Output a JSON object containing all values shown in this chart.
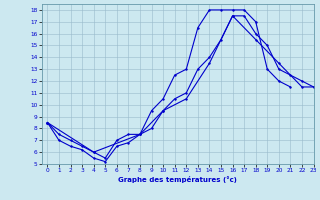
{
  "xlabel": "Graphe des températures (°c)",
  "xlim": [
    -0.5,
    23
  ],
  "ylim": [
    5,
    18.5
  ],
  "yticks": [
    5,
    6,
    7,
    8,
    9,
    10,
    11,
    12,
    13,
    14,
    15,
    16,
    17,
    18
  ],
  "xticks": [
    0,
    1,
    2,
    3,
    4,
    5,
    6,
    7,
    8,
    9,
    10,
    11,
    12,
    13,
    14,
    15,
    16,
    17,
    18,
    19,
    20,
    21,
    22,
    23
  ],
  "bg_color": "#cce8f0",
  "line_color": "#0000cc",
  "grid_color": "#99bbcc",
  "curve1_x": [
    0,
    1,
    2,
    3,
    4,
    5,
    6,
    7,
    8,
    9,
    10,
    11,
    12,
    13,
    14,
    15,
    16,
    17,
    18,
    19,
    20,
    21
  ],
  "curve1_y": [
    8.5,
    7.0,
    6.5,
    6.2,
    5.5,
    5.2,
    6.5,
    6.8,
    7.5,
    9.5,
    10.5,
    12.5,
    13.0,
    16.5,
    18.0,
    18.0,
    18.0,
    18.0,
    17.0,
    13.0,
    12.0,
    11.5
  ],
  "curve2_x": [
    0,
    1,
    2,
    3,
    4,
    5,
    6,
    7,
    8,
    9,
    10,
    11,
    12,
    13,
    14,
    15,
    16,
    17,
    18,
    19,
    20,
    21,
    22,
    23
  ],
  "curve2_y": [
    8.5,
    7.5,
    7.0,
    6.5,
    6.0,
    5.5,
    7.0,
    7.5,
    7.5,
    8.0,
    9.5,
    10.5,
    11.0,
    13.0,
    14.0,
    15.5,
    17.5,
    17.5,
    16.0,
    15.0,
    13.0,
    12.5,
    12.0,
    11.5
  ],
  "curve3_x": [
    0,
    4,
    8,
    10,
    12,
    14,
    16,
    18,
    20,
    22,
    23
  ],
  "curve3_y": [
    8.5,
    6.0,
    7.5,
    9.5,
    10.5,
    13.5,
    17.5,
    15.5,
    13.5,
    11.5,
    11.5
  ]
}
